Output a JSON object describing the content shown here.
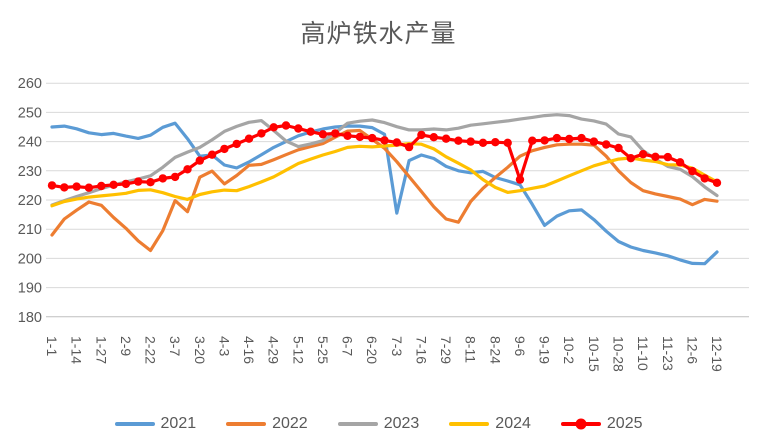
{
  "chart_data": {
    "type": "line",
    "title": "高炉铁水产量",
    "y_axis": {
      "min": 180,
      "max": 260,
      "step": 10
    },
    "x_labels": [
      "1-1",
      "1-14",
      "1-27",
      "2-9",
      "2-22",
      "3-7",
      "3-20",
      "4-3",
      "4-16",
      "4-29",
      "5-12",
      "5-25",
      "6-7",
      "6-20",
      "7-3",
      "7-16",
      "7-29",
      "8-11",
      "8-24",
      "9-6",
      "9-19",
      "10-2",
      "10-15",
      "10-28",
      "11-10",
      "11-23",
      "12-6",
      "12-19"
    ],
    "points_between_labels": 2,
    "grid": "horizontal",
    "legend_position": "bottom",
    "colors": {
      "gridline": "#D9D9D9",
      "axis_line": "#BFBFBF",
      "text": "#595959"
    },
    "series": [
      {
        "name": "2021",
        "color": "#5B9BD5",
        "marker": false,
        "values": [
          245,
          245.3,
          244.4,
          243,
          242.4,
          242.8,
          241.9,
          241.1,
          242.2,
          244.9,
          246.3,
          241,
          235,
          235.4,
          232,
          231,
          233,
          235.5,
          238,
          240,
          242,
          243.3,
          244.3,
          245,
          245.3,
          245.3,
          244.8,
          242.5,
          215.5,
          233.5,
          235.4,
          234.2,
          231.5,
          230,
          229.3,
          229.8,
          227.7,
          226.5,
          225.2,
          218.5,
          211.3,
          214.5,
          216.3,
          216.6,
          213.3,
          209.3,
          205.8,
          203.9,
          202.7,
          201.9,
          200.9,
          199.5,
          198.3,
          198.2,
          202.2
        ]
      },
      {
        "name": "2022",
        "color": "#ED7D31",
        "marker": false,
        "values": [
          208,
          213.5,
          216.5,
          219.3,
          218.2,
          214,
          210.3,
          206,
          202.7,
          209.5,
          219.8,
          216,
          227.8,
          229.9,
          225.5,
          228.4,
          231.9,
          232.2,
          233.8,
          235.5,
          237.2,
          238.3,
          239.3,
          241.5,
          243.6,
          243.8,
          240.8,
          237.7,
          233.1,
          228,
          222.9,
          217.7,
          213.5,
          212.4,
          219.5,
          224,
          227.7,
          231.2,
          235,
          236.9,
          238,
          238.9,
          239.1,
          239.1,
          238.8,
          235,
          230,
          226,
          223.2,
          222.1,
          221.2,
          220.3,
          218.4,
          220.2,
          219.6
        ]
      },
      {
        "name": "2023",
        "color": "#A5A5A5",
        "marker": false,
        "values": [
          218.3,
          219.8,
          221.2,
          222.5,
          223.9,
          225.1,
          226.2,
          227.2,
          228.3,
          231.2,
          234.6,
          236.4,
          238,
          240.6,
          243.5,
          245.2,
          246.6,
          247.2,
          243.8,
          240.2,
          238.3,
          239.2,
          240.3,
          243,
          246.3,
          247,
          247.4,
          246.5,
          245.1,
          244,
          244,
          244.3,
          244,
          244.6,
          245.6,
          246.1,
          246.6,
          247.1,
          247.7,
          248.3,
          248.9,
          249.2,
          248.9,
          247.7,
          247.1,
          246,
          242.6,
          241.6,
          236.9,
          234,
          231.5,
          230.5,
          228,
          224.5,
          221.5
        ]
      },
      {
        "name": "2024",
        "color": "#FFC000",
        "marker": false,
        "values": [
          218,
          219.5,
          220.3,
          221,
          221.4,
          221.8,
          222.3,
          223.3,
          223.5,
          222.5,
          221.2,
          220.2,
          221.9,
          222.8,
          223.4,
          223.2,
          224.6,
          226.2,
          227.9,
          230.2,
          232.5,
          234,
          235.4,
          236.6,
          238,
          238.4,
          238.2,
          238.5,
          238.8,
          239.3,
          239.1,
          237.5,
          234.8,
          232.6,
          230.3,
          227,
          224.3,
          222.6,
          223.2,
          224,
          224.8,
          226.5,
          228.3,
          230,
          231.7,
          232.9,
          234,
          234.4,
          233.7,
          233.2,
          232.1,
          232,
          230.9,
          228.5,
          226.2
        ]
      },
      {
        "name": "2025",
        "color": "#FF0000",
        "marker": true,
        "values": [
          225,
          224.3,
          224.6,
          224.2,
          224.8,
          225.2,
          225.5,
          226.3,
          226.1,
          227.4,
          227.9,
          230.5,
          233.5,
          235.5,
          237.5,
          239.2,
          241,
          242.8,
          244.9,
          245.5,
          244.5,
          243.4,
          242.5,
          242.8,
          242,
          241.6,
          241.2,
          240.4,
          239.7,
          238.1,
          242.3,
          241.5,
          241,
          240.3,
          240,
          239.6,
          239.8,
          239.6,
          227,
          240.3,
          240.4,
          241.2,
          240.9,
          241.2,
          240,
          239,
          237.8,
          234.3,
          235.7,
          234.8,
          234.7,
          232.9,
          229.9,
          227.4,
          225.9
        ]
      }
    ]
  }
}
